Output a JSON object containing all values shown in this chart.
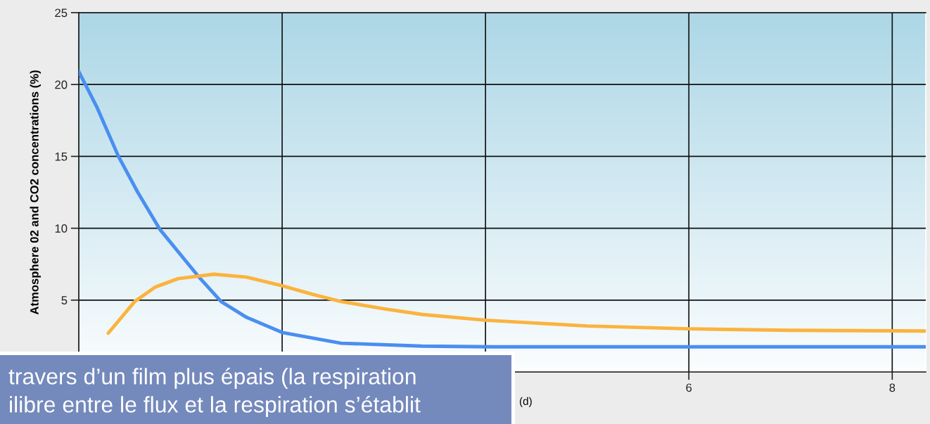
{
  "chart_data": {
    "type": "line",
    "ylabel": "Atmosphere 02 and CO2 concentrations (%)",
    "xlabel": "(d)",
    "xlim": [
      0,
      8.33
    ],
    "xticks": [
      {
        "value": 2,
        "label": null
      },
      {
        "value": 4,
        "label": null
      },
      6,
      8
    ],
    "ylim": [
      0,
      25
    ],
    "yticks": [
      5,
      10,
      15,
      20,
      25
    ],
    "grid": true,
    "legend": false,
    "marker": "none",
    "line_style": "solid",
    "series": [
      {
        "color": "#4a8ef0",
        "x": [
          0.0,
          0.18,
          0.39,
          0.58,
          0.8,
          1.17,
          1.4,
          1.65,
          2.0,
          2.58,
          3.38,
          4.07,
          5.0,
          6.0,
          7.0,
          8.33
        ],
        "values": [
          20.9,
          18.4,
          15.0,
          12.5,
          9.9,
          6.7,
          4.9,
          3.8,
          2.75,
          2.0,
          1.8,
          1.75,
          1.75,
          1.75,
          1.75,
          1.75
        ]
      },
      {
        "color": "#fbb33e",
        "x": [
          0.29,
          0.55,
          0.75,
          0.98,
          1.33,
          1.65,
          2.0,
          2.3,
          2.58,
          3.0,
          3.38,
          4.0,
          5.0,
          6.0,
          7.0,
          8.33
        ],
        "values": [
          2.7,
          4.9,
          5.9,
          6.5,
          6.8,
          6.6,
          6.0,
          5.4,
          4.9,
          4.4,
          4.0,
          3.6,
          3.2,
          3.0,
          2.9,
          2.85
        ]
      }
    ],
    "annotations": [
      "travers d’un film plus épais (la respiration",
      "ilibre entre le flux et la respiration s’établit"
    ]
  }
}
